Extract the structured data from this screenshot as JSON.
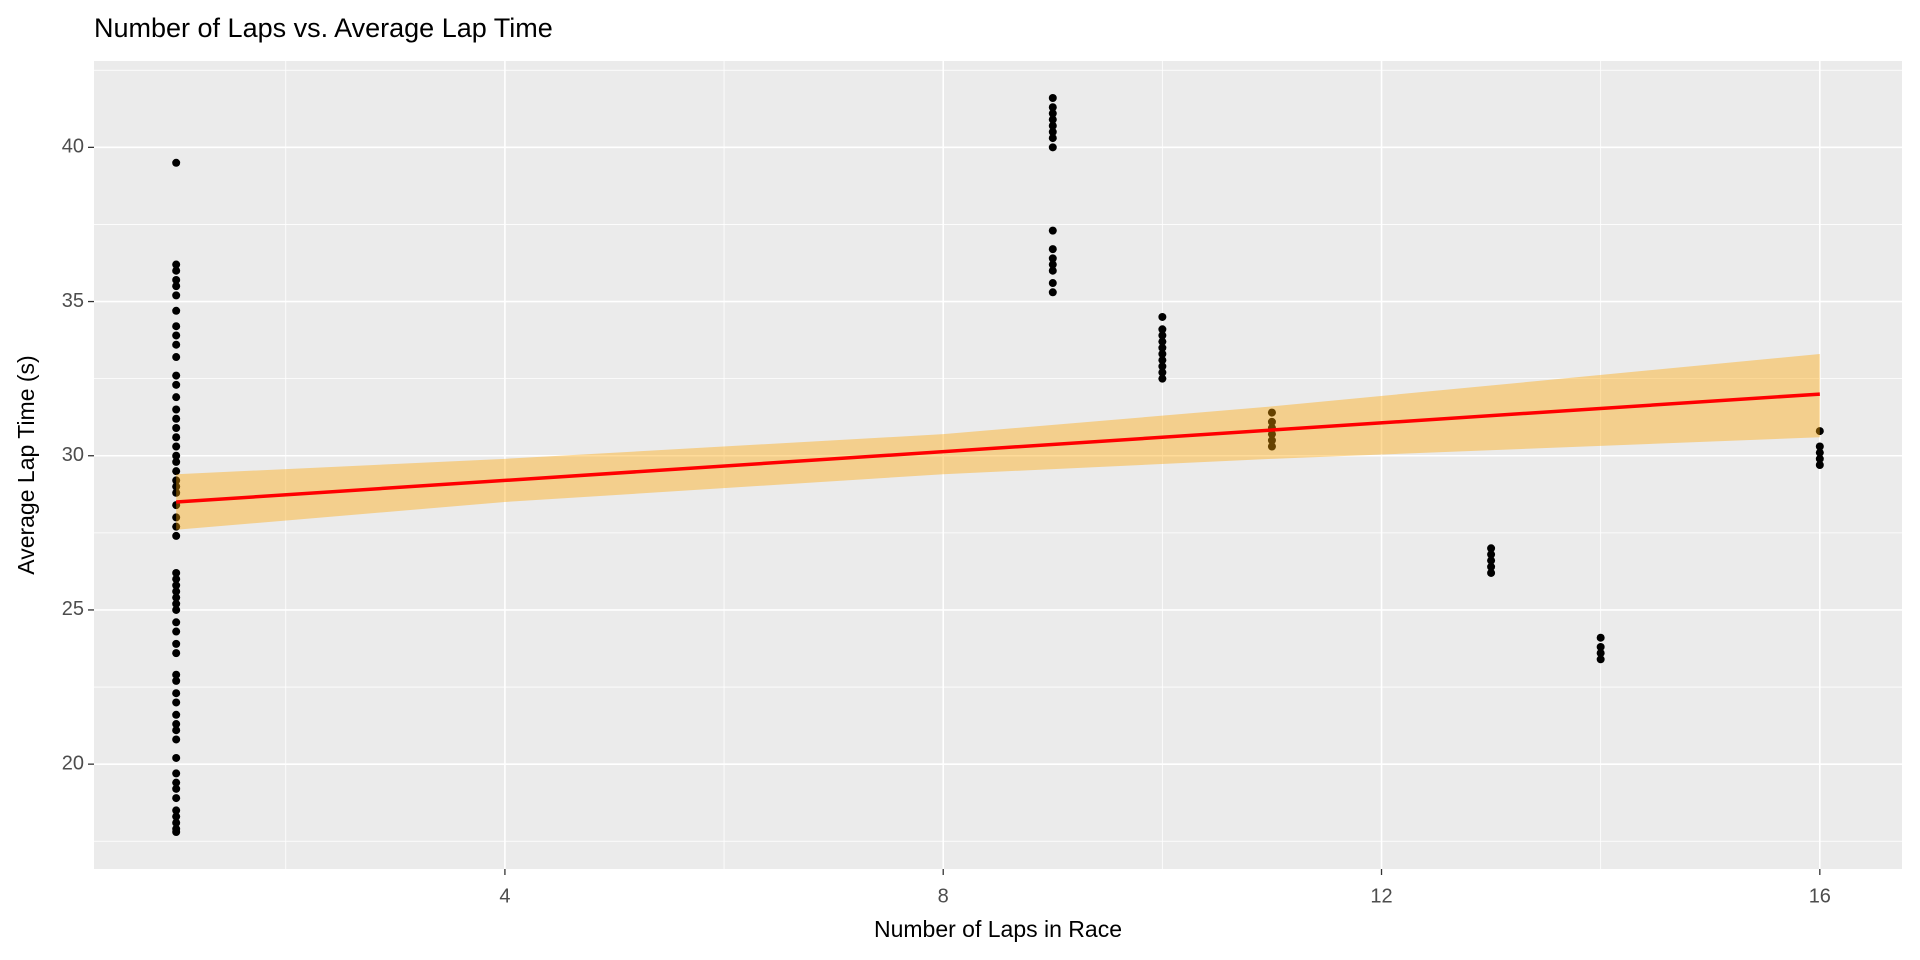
{
  "chart_data": {
    "type": "scatter",
    "title": "Number of Laps vs. Average Lap Time",
    "x_label": "Number of Laps in Race",
    "y_label": "Average Lap Time (s)",
    "xlim": [
      0.25,
      16.75
    ],
    "ylim": [
      16.6,
      42.8
    ],
    "xticks": [
      4,
      8,
      12,
      16
    ],
    "yticks": [
      20,
      25,
      30,
      35,
      40
    ],
    "xminor": [
      2,
      6,
      10,
      14
    ],
    "yminor": [
      17.5,
      22.5,
      27.5,
      32.5,
      37.5,
      42.5
    ],
    "grid": true,
    "point_color": "#000000",
    "groups": [
      {
        "x": 1,
        "values": [
          17.8,
          17.9,
          18.1,
          18.3,
          18.5,
          18.9,
          19.2,
          19.4,
          19.7,
          20.2,
          20.8,
          21.1,
          21.3,
          21.6,
          22.0,
          22.3,
          22.7,
          22.9,
          23.6,
          23.9,
          24.3,
          24.6,
          25.0,
          25.2,
          25.4,
          25.6,
          25.8,
          26.0,
          26.2,
          27.4,
          27.7,
          28.0,
          28.4,
          28.8,
          29.0,
          29.2,
          29.5,
          29.8,
          30.0,
          30.3,
          30.6,
          30.9,
          31.2,
          31.5,
          31.9,
          32.3,
          32.6,
          33.2,
          33.6,
          33.9,
          34.2,
          34.7,
          35.2,
          35.5,
          35.7,
          36.0,
          36.2,
          39.5
        ]
      },
      {
        "x": 9,
        "values": [
          35.3,
          35.6,
          36.0,
          36.2,
          36.4,
          36.7,
          37.3,
          40.0,
          40.3,
          40.5,
          40.7,
          40.9,
          41.1,
          41.3,
          41.6
        ]
      },
      {
        "x": 10,
        "values": [
          32.5,
          32.7,
          32.9,
          33.1,
          33.3,
          33.5,
          33.7,
          33.9,
          34.1,
          34.5
        ]
      },
      {
        "x": 11,
        "values": [
          30.3,
          30.5,
          30.7,
          30.9,
          31.1,
          31.4
        ]
      },
      {
        "x": 13,
        "values": [
          26.2,
          26.4,
          26.6,
          26.8,
          27.0
        ]
      },
      {
        "x": 14,
        "values": [
          23.4,
          23.6,
          23.8,
          24.1
        ]
      },
      {
        "x": 16,
        "values": [
          29.7,
          29.9,
          30.1,
          30.3,
          30.8
        ]
      }
    ],
    "fit": {
      "color": "#ff0000",
      "x": [
        1,
        16
      ],
      "y": [
        28.5,
        32.0
      ]
    },
    "band": {
      "color": "#ffa500",
      "x": [
        1,
        4,
        8,
        11,
        16
      ],
      "lower": [
        27.6,
        28.5,
        29.4,
        29.9,
        30.6
      ],
      "upper": [
        29.4,
        29.9,
        30.7,
        31.6,
        33.3
      ]
    }
  }
}
